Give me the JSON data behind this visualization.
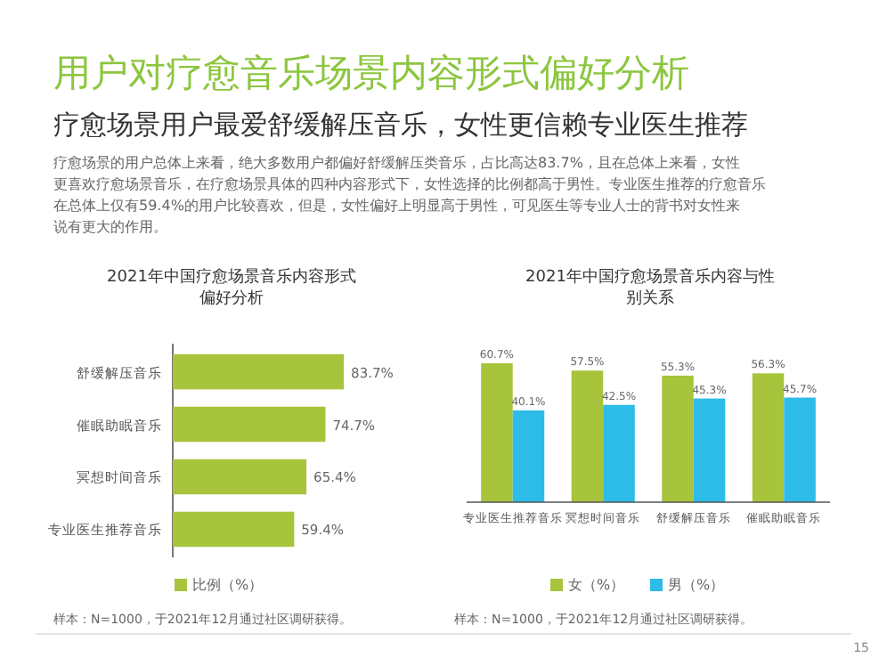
{
  "chart_data": [
    {
      "type": "other",
      "title": "用户对疗愈音乐场景内容形式偏好分析",
      "subtitle": "疗愈场景用户最爱舒缓解压音乐，女性更信赖专业医生推荐",
      "annotations": [
        "疗愈场景的用户总体上来看，绝大多数用户都偏好舒缓解压类音乐，占比高达83.7%，且在总体上来看，女性更喜欢疗愈场景音乐，在疗愈场景具体的四种内容形式下，女性选择的比例都高于男性。专业医生推荐的疗愈音乐在总体上仅有59.4%的用户比较喜欢，但是，女性偏好上明显高于男性，可见医生等专业人士的背书对女性来说有更大的作用。"
      ]
    },
    {
      "type": "bar",
      "orientation": "horizontal",
      "title": "2021年中国疗愈场景音乐内容形式偏好分析",
      "categories": [
        "舒缓解压音乐",
        "催眠助眠音乐",
        "冥想时间音乐",
        "专业医生推荐音乐"
      ],
      "series": [
        {
          "name": "比例（%）",
          "color": "#a7c43c",
          "values": [
            83.7,
            74.7,
            65.4,
            59.4
          ],
          "value_labels": [
            "83.7%",
            "74.7%",
            "65.4%",
            "59.4%"
          ]
        }
      ],
      "legend": "bottom",
      "annotations": [
        "样本：N=1000，于2021年12月通过社区调研获得。"
      ]
    },
    {
      "type": "bar",
      "title": "2021年中国疗愈场景音乐内容与性别关系",
      "categories": [
        "专业医生推荐音乐",
        "冥想时间音乐",
        "舒缓解压音乐",
        "催眠助眠音乐"
      ],
      "series": [
        {
          "name": "女（%）",
          "color": "#a7c43c",
          "values": [
            60.7,
            57.5,
            55.3,
            56.3
          ],
          "value_labels": [
            "60.7%",
            "57.5%",
            "55.3%",
            "56.3%"
          ]
        },
        {
          "name": "男（%）",
          "color": "#2dbbe8",
          "values": [
            40.1,
            42.5,
            45.3,
            45.7
          ],
          "value_labels": [
            "40.1%",
            "42.5%",
            "45.3%",
            "45.7%"
          ]
        }
      ],
      "legend": "bottom",
      "annotations": [
        "样本：N=1000，于2021年12月通过社区调研获得。",
        "15"
      ]
    }
  ]
}
